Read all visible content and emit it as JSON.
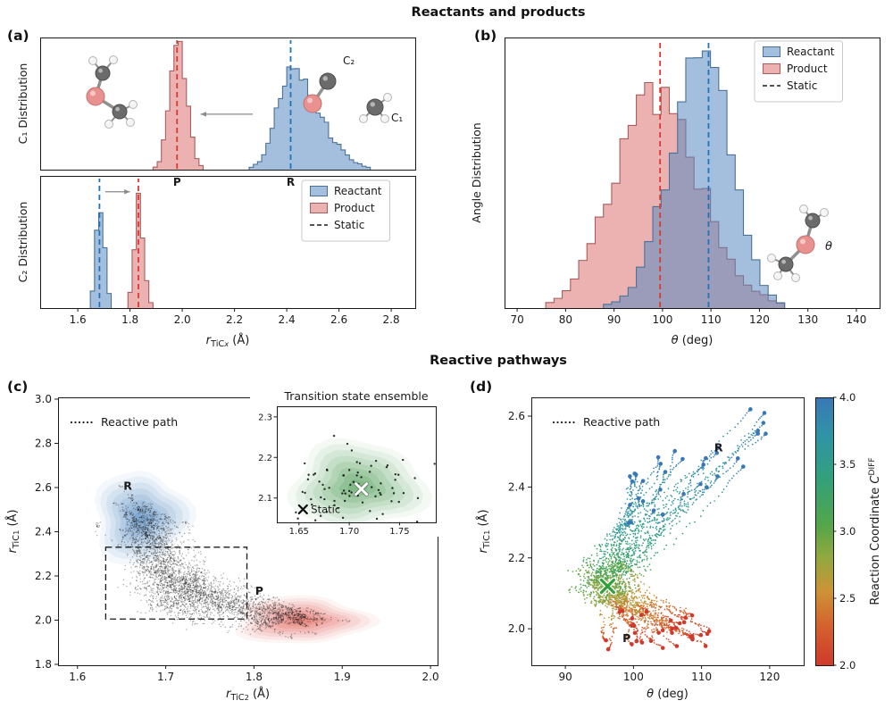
{
  "figure": {
    "title_top": "Reactants and products",
    "title_bottom": "Reactive pathways",
    "panels": {
      "a": "(a)",
      "b": "(b)",
      "c": "(c)",
      "d": "(d)"
    }
  },
  "colors": {
    "reactant_fill": "rgba(88,139,193,0.55)",
    "reactant_edge": "#4a7298",
    "reactant_line": "#2273b8",
    "product_fill": "rgba(217,102,102,0.5)",
    "product_edge": "#a95c5c",
    "product_line": "#d93a30",
    "static_line": "#1a1a1a",
    "kde_blue": "#2e73b2",
    "kde_red": "#d93a30",
    "kde_green": "#2f8f3c",
    "path_color": "#1f1f1f",
    "arrow_color": "#8a8a8a",
    "atom_c": "#6b6b6b",
    "atom_h": "#f4f4f4",
    "atom_x": "#e8918f"
  },
  "chart_data": [
    {
      "panel": "a",
      "type": "histogram_stack",
      "x_range": [
        1.456,
        2.892
      ],
      "bin_width": 0.016,
      "x_ticks": [
        "1.6",
        "1.8",
        "2.0",
        "2.2",
        "2.4",
        "2.6",
        "2.8"
      ],
      "x_label": [
        {
          "t": "r",
          "i": 1
        },
        {
          "t": "TiC",
          "sub": 1
        },
        {
          "t": "x",
          "sub": 1,
          "i": 1,
          "small": 1
        },
        {
          "t": " (Å)"
        }
      ],
      "subplots": [
        {
          "y_label": "C₁ Distribution",
          "series": [
            {
              "name": "Product",
              "color": "product",
              "mean": 1.98,
              "std_left": 0.03,
              "std_right": 0.036,
              "peak": 1.0,
              "static_value": 1.98,
              "marker": "P"
            },
            {
              "name": "Reactant",
              "color": "reactant",
              "mean": 2.415,
              "std_left": 0.055,
              "std_right": 0.11,
              "peak": 0.8,
              "static_value": 2.415,
              "marker": "R"
            }
          ],
          "arrow": {
            "x_from": 2.27,
            "x_to": 2.07,
            "height": 0.42
          },
          "atom_labels": {
            "c2": "C₂",
            "c1": "C₁"
          }
        },
        {
          "y_label": "C₂ Distribution",
          "series": [
            {
              "name": "Reactant",
              "color": "reactant",
              "mean": 1.683,
              "std_left": 0.014,
              "std_right": 0.018,
              "peak": 0.95,
              "static_value": 1.683
            },
            {
              "name": "Product",
              "color": "product",
              "mean": 1.832,
              "std_left": 0.016,
              "std_right": 0.02,
              "peak": 0.9,
              "static_value": 1.832
            }
          ],
          "arrow": {
            "x_from": 1.705,
            "x_to": 1.8,
            "height": 0.88
          },
          "legend": [
            {
              "key": "reactant",
              "label": "Reactant"
            },
            {
              "key": "product",
              "label": "Product"
            },
            {
              "key": "static",
              "label": "Static"
            }
          ]
        }
      ]
    },
    {
      "panel": "b",
      "type": "histogram",
      "x_range": [
        67.4,
        144.8
      ],
      "bin_width": 1.7,
      "x_ticks": [
        "70",
        "80",
        "90",
        "100",
        "110",
        "120",
        "130",
        "140"
      ],
      "x_label": [
        {
          "t": "θ",
          "i": 1
        },
        {
          "t": " (deg)"
        }
      ],
      "y_label": "Angle Distribution",
      "series": [
        {
          "name": "Product",
          "color": "product",
          "mean": 98,
          "std_left": 8,
          "std_right": 9.5,
          "peak": 0.9,
          "static_value": 99.5
        },
        {
          "name": "Reactant",
          "color": "reactant",
          "mean": 108.5,
          "std_left": 6.8,
          "std_right": 5.8,
          "peak": 1.0,
          "static_value": 109.5
        }
      ],
      "legend": [
        {
          "key": "reactant",
          "label": "Reactant"
        },
        {
          "key": "product",
          "label": "Product"
        },
        {
          "key": "static",
          "label": "Static"
        }
      ],
      "theta_label": "θ"
    },
    {
      "panel": "c",
      "type": "kde_paths",
      "x_range": [
        1.578,
        2.008
      ],
      "y_range": [
        1.796,
        3.008
      ],
      "x_ticks": [
        "1.6",
        "1.7",
        "1.8",
        "1.9",
        "2.0"
      ],
      "y_ticks": [
        "1.8",
        "2.0",
        "2.2",
        "2.4",
        "2.6",
        "2.8",
        "3.0"
      ],
      "x_label": [
        {
          "t": "r",
          "i": 1
        },
        {
          "t": "TiC",
          "sub": 1
        },
        {
          "t": "2",
          "sub": 1,
          "small": 1
        },
        {
          "t": " (Å)"
        }
      ],
      "y_label": [
        {
          "t": "r",
          "i": 1
        },
        {
          "t": "TiC",
          "sub": 1
        },
        {
          "t": "1",
          "sub": 1,
          "small": 1
        },
        {
          "t": " (Å)"
        }
      ],
      "legend_label": "Reactive path",
      "clusters": [
        {
          "label": "R",
          "x": 1.672,
          "y": 2.46,
          "sx": 0.021,
          "sy": 0.082,
          "color": "kde_blue",
          "label_x": 1.657,
          "label_y": 2.59
        },
        {
          "label": "P",
          "x": 1.853,
          "y": 2.0,
          "sx": 0.03,
          "sy": 0.042,
          "color": "kde_red",
          "label_x": 1.806,
          "label_y": 2.115
        }
      ],
      "transition_box": {
        "x0": 1.632,
        "y0": 2.005,
        "x1": 1.792,
        "y1": 2.33
      },
      "paths": {
        "count": 48,
        "start": [
          1.672,
          2.45
        ],
        "mid": [
          1.715,
          2.14
        ],
        "end": [
          1.85,
          2.0
        ]
      },
      "inset": {
        "title": "Transition state ensemble",
        "x_range": [
          1.628,
          1.786
        ],
        "y_range": [
          2.04,
          2.326
        ],
        "x_ticks": [
          "1.65",
          "1.70",
          "1.75"
        ],
        "y_ticks": [
          "2.1",
          "2.2",
          "2.3"
        ],
        "kde_center": [
          1.708,
          2.13
        ],
        "kde_sx": 0.026,
        "kde_sy": 0.042,
        "scatter_count": 85,
        "ensemble_marker": [
          1.712,
          2.122
        ],
        "static_marker": [
          1.654,
          2.072
        ],
        "static_label": "Static"
      }
    },
    {
      "panel": "d",
      "type": "trajectories",
      "x_range": [
        85,
        125
      ],
      "y_range": [
        1.897,
        2.653
      ],
      "x_ticks": [
        "90",
        "100",
        "110",
        "120"
      ],
      "y_ticks": [
        "2.0",
        "2.2",
        "2.4",
        "2.6"
      ],
      "x_label": [
        {
          "t": "θ",
          "i": 1
        },
        {
          "t": " (deg)"
        }
      ],
      "y_label": [
        {
          "t": "r",
          "i": 1
        },
        {
          "t": "TiC",
          "sub": 1
        },
        {
          "t": "1",
          "sub": 1,
          "small": 1
        },
        {
          "t": " (Å)"
        }
      ],
      "legend_label": "Reactive path",
      "reactant_label": {
        "text": "R",
        "x": 112.5,
        "y": 2.5
      },
      "product_label": {
        "text": "P",
        "x": 99,
        "y": 1.962
      },
      "ts_marker": {
        "x": 96.2,
        "y": 2.12
      },
      "trajectory_count": 34,
      "colorbar": {
        "label": [
          {
            "t": "Reaction Coordinate "
          },
          {
            "t": "C",
            "i": 1
          },
          {
            "t": "DIFF",
            "sup": 1
          }
        ],
        "ticks": [
          "2.0",
          "2.5",
          "3.0",
          "3.5",
          "4.0"
        ],
        "range": [
          2,
          4
        ],
        "stops": [
          [
            2,
            "#cf3a2c"
          ],
          [
            2.3,
            "#d4622e"
          ],
          [
            2.55,
            "#cd9336"
          ],
          [
            2.8,
            "#93a83e"
          ],
          [
            3.05,
            "#53a64a"
          ],
          [
            3.4,
            "#32a07c"
          ],
          [
            3.7,
            "#2f95a5"
          ],
          [
            4,
            "#3a77b6"
          ]
        ]
      }
    }
  ]
}
